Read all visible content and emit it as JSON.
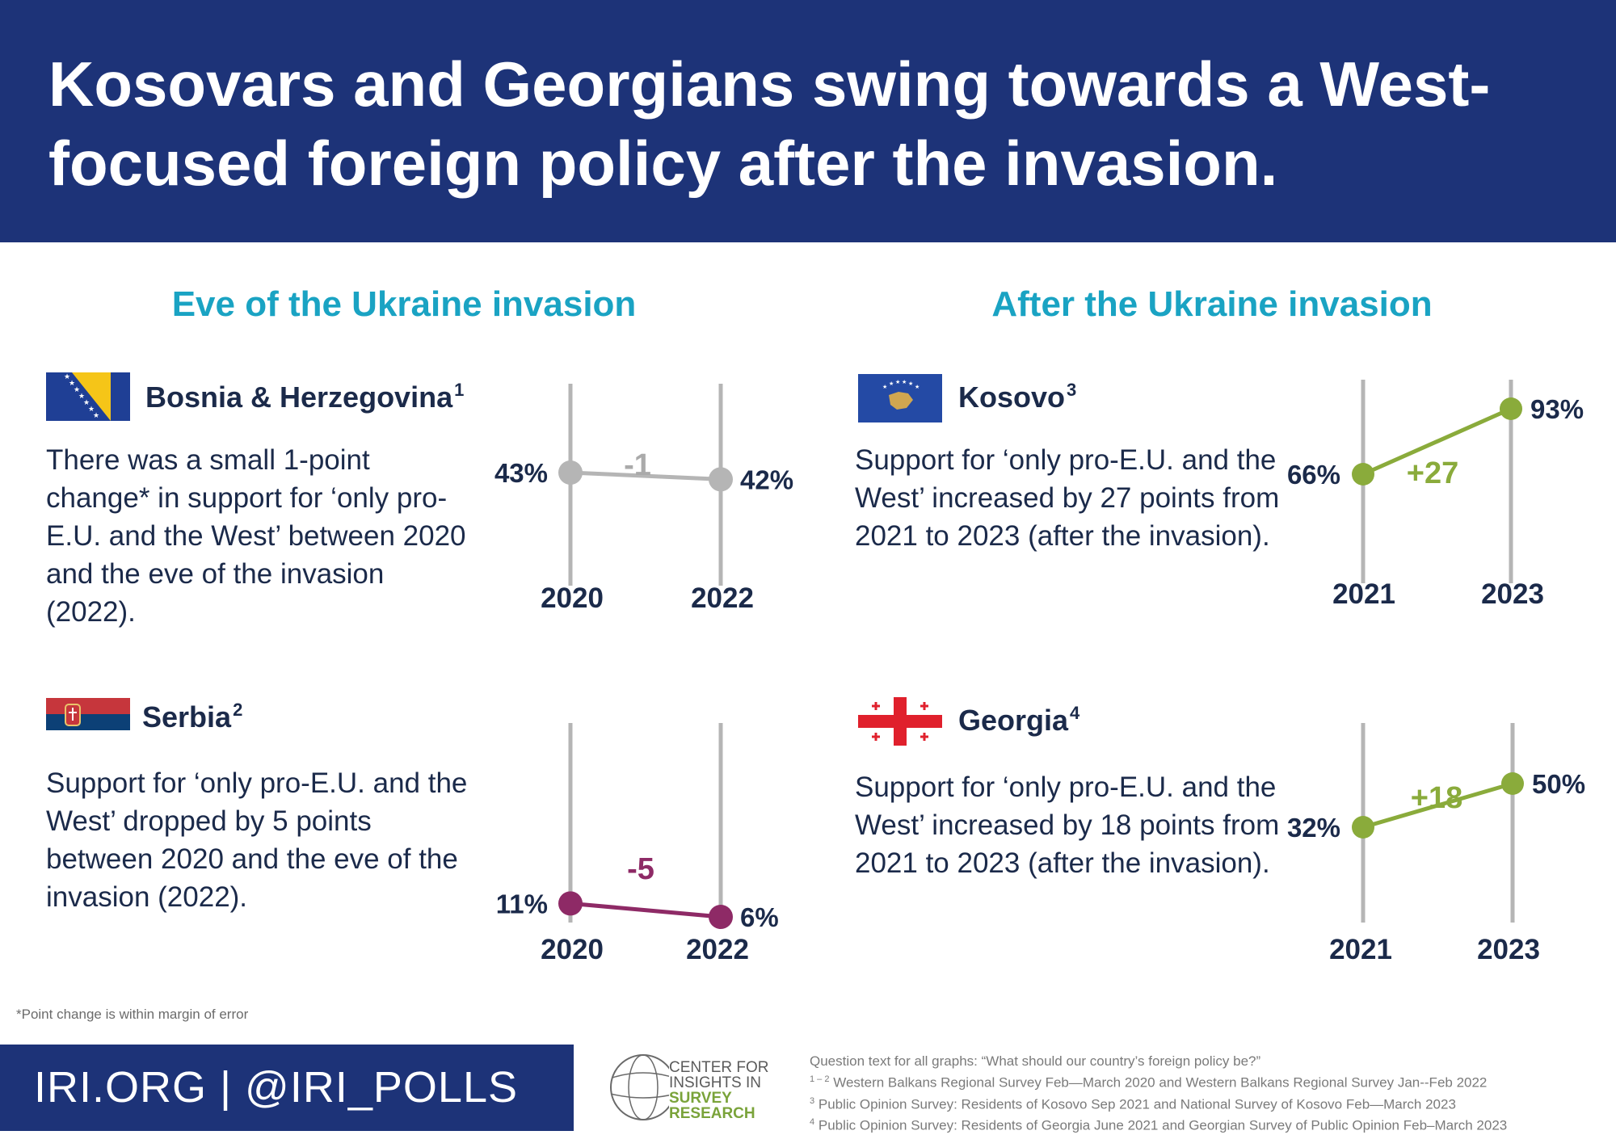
{
  "header": {
    "title": "Kosovars and Georgians swing towards a West-focused foreign policy after the invasion."
  },
  "sections": {
    "left": "Eve of the Ukraine invasion",
    "right": "After the Ukraine invasion"
  },
  "countries": [
    {
      "name": "Bosnia & Herzegovina",
      "note": "1",
      "flag": "bosnia-flag",
      "description": "There was a small 1-point change* in support for ‘only pro-E.U. and the West’ between 2020 and the eve of the invasion (2022)."
    },
    {
      "name": "Serbia",
      "note": "2",
      "flag": "serbia-flag",
      "description": "Support for ‘only pro-E.U. and the West’ dropped by 5 points between 2020 and the eve of the invasion (2022)."
    },
    {
      "name": "Kosovo",
      "note": "3",
      "flag": "kosovo-flag",
      "description": "Support for ‘only pro-E.U. and the West’ increased by 27 points from 2021 to 2023 (after the invasion)."
    },
    {
      "name": "Georgia",
      "note": "4",
      "flag": "georgia-flag",
      "description": "Support for ‘only pro-E.U. and the West’ increased by 18 points from 2021 to 2023 (after the invasion)."
    }
  ],
  "colors": {
    "navy": "#1d3378",
    "teal": "#1aa3c3",
    "gray": "#b5b5b5",
    "magenta": "#8e2a66",
    "green": "#8aab3b",
    "text": "#1b2a4a"
  },
  "chart_data": [
    {
      "type": "line",
      "country": "Bosnia & Herzegovina",
      "x": [
        "2020",
        "2022"
      ],
      "values": [
        43,
        42
      ],
      "labels": [
        "43%",
        "42%"
      ],
      "change": "-1",
      "color": "#b5b5b5",
      "change_color": "#aaaaaa"
    },
    {
      "type": "line",
      "country": "Serbia",
      "x": [
        "2020",
        "2022"
      ],
      "values": [
        11,
        6
      ],
      "labels": [
        "11%",
        "6%"
      ],
      "change": "-5",
      "color": "#8e2a66",
      "change_color": "#8e2a66"
    },
    {
      "type": "line",
      "country": "Kosovo",
      "x": [
        "2021",
        "2023"
      ],
      "values": [
        66,
        93
      ],
      "labels": [
        "66%",
        "93%"
      ],
      "change": "+27",
      "color": "#8aab3b",
      "change_color": "#8aab3b"
    },
    {
      "type": "line",
      "country": "Georgia",
      "x": [
        "2021",
        "2023"
      ],
      "values": [
        32,
        50
      ],
      "labels": [
        "32%",
        "50%"
      ],
      "change": "+18",
      "color": "#8aab3b",
      "change_color": "#8aab3b"
    }
  ],
  "footnote": "*Point change is within margin of error",
  "footer": {
    "handle": "IRI.ORG | @IRI_POLLS"
  },
  "logo": {
    "line1": "CENTER FOR",
    "line2": "INSIGHTS IN",
    "line3": "SURVEY",
    "line4": "RESEARCH"
  },
  "sources": {
    "question": "Question text for all graphs: “What should our country’s foreign policy be?”",
    "s12_mark": "1 – 2",
    "s12": "Western Balkans Regional Survey  Feb—March 2020 and Western Balkans Regional Survey  Jan--Feb 2022",
    "s3_mark": "3",
    "s3": "Public Opinion Survey: Residents of Kosovo  Sep 2021 and National Survey of Kosovo  Feb—March 2023",
    "s4_mark": "4",
    "s4": "Public Opinion Survey: Residents of Georgia  June 2021 and Georgian Survey of Public Opinion  Feb–March 2023"
  }
}
